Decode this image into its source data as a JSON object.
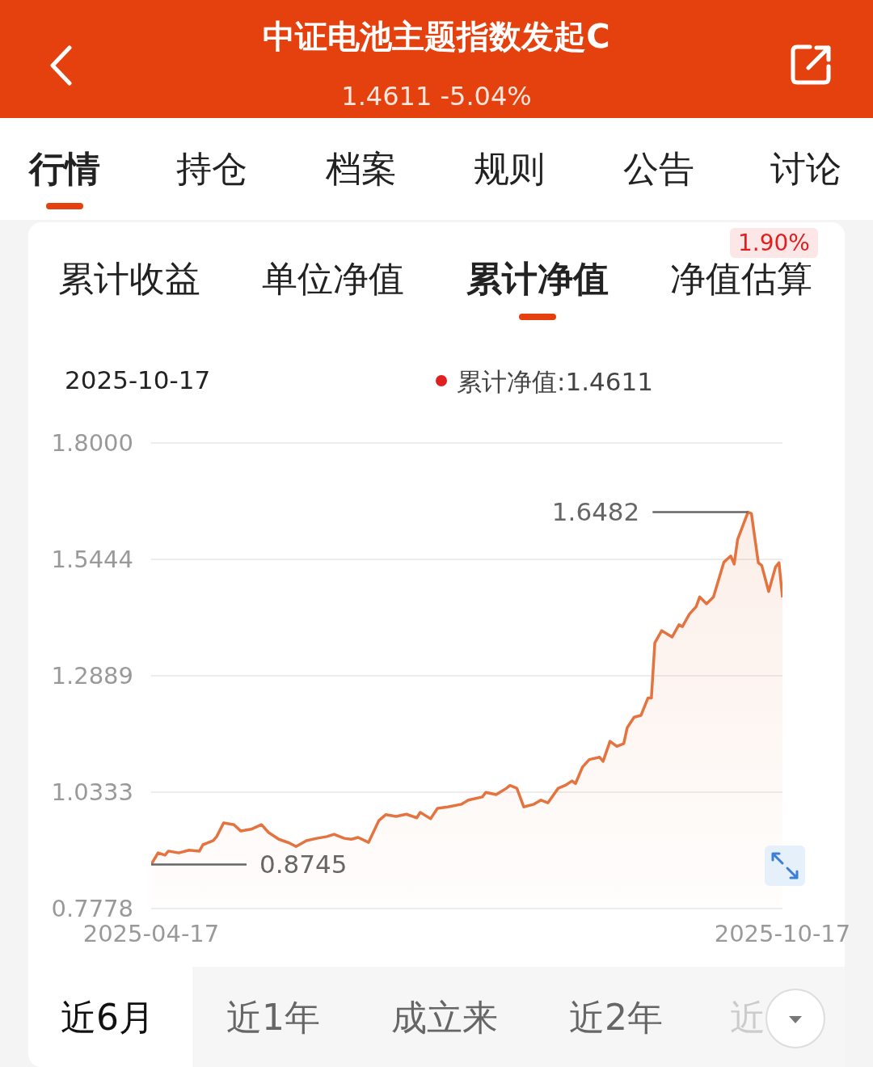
{
  "chart_data": {
    "type": "area",
    "title": "中证电池主题指数发起C",
    "subtitle": "1.4611 -5.04%",
    "x": [
      "2025-04-17",
      "2025-04-19",
      "2025-04-21",
      "2025-04-22",
      "2025-04-25",
      "2025-04-28",
      "2025-05-01",
      "2025-05-02",
      "2025-05-05",
      "2025-05-06",
      "2025-05-08",
      "2025-05-11",
      "2025-05-13",
      "2025-05-16",
      "2025-05-19",
      "2025-05-21",
      "2025-05-24",
      "2025-05-27",
      "2025-05-29",
      "2025-06-01",
      "2025-06-04",
      "2025-06-07",
      "2025-06-09",
      "2025-06-12",
      "2025-06-14",
      "2025-06-16",
      "2025-06-19",
      "2025-06-22",
      "2025-06-24",
      "2025-06-27",
      "2025-06-30",
      "2025-07-03",
      "2025-07-04",
      "2025-07-07",
      "2025-07-09",
      "2025-07-12",
      "2025-07-16",
      "2025-07-18",
      "2025-07-22",
      "2025-07-23",
      "2025-07-26",
      "2025-07-29",
      "2025-07-30",
      "2025-08-01",
      "2025-08-03",
      "2025-08-06",
      "2025-08-08",
      "2025-08-10",
      "2025-08-13",
      "2025-08-15",
      "2025-08-17",
      "2025-08-18",
      "2025-08-20",
      "2025-08-22",
      "2025-08-25",
      "2025-08-26",
      "2025-08-28",
      "2025-08-30",
      "2025-09-01",
      "2025-09-02",
      "2025-09-04",
      "2025-09-06",
      "2025-09-08",
      "2025-09-09",
      "2025-09-10",
      "2025-09-12",
      "2025-09-15",
      "2025-09-17",
      "2025-09-18",
      "2025-09-20",
      "2025-09-22",
      "2025-09-23",
      "2025-09-25",
      "2025-09-27",
      "2025-09-30",
      "2025-10-02",
      "2025-10-03",
      "2025-10-04",
      "2025-10-07",
      "2025-10-08",
      "2025-10-10",
      "2025-10-11",
      "2025-10-13",
      "2025-10-15",
      "2025-10-16",
      "2025-10-17"
    ],
    "values": [
      0.8745,
      0.9,
      0.895,
      0.904,
      0.9,
      0.906,
      0.904,
      0.918,
      0.927,
      0.936,
      0.966,
      0.962,
      0.948,
      0.952,
      0.962,
      0.945,
      0.93,
      0.922,
      0.914,
      0.927,
      0.932,
      0.936,
      0.941,
      0.932,
      0.93,
      0.934,
      0.923,
      0.971,
      0.984,
      0.98,
      0.985,
      0.977,
      0.989,
      0.975,
      0.998,
      1.001,
      1.007,
      1.016,
      1.023,
      1.033,
      1.028,
      1.042,
      1.048,
      1.042,
      1.001,
      1.007,
      1.016,
      1.01,
      1.042,
      1.048,
      1.058,
      1.052,
      1.088,
      1.105,
      1.11,
      1.101,
      1.145,
      1.134,
      1.14,
      1.175,
      1.198,
      1.202,
      1.24,
      1.24,
      1.361,
      1.388,
      1.374,
      1.401,
      1.397,
      1.424,
      1.441,
      1.462,
      1.447,
      1.462,
      1.538,
      1.552,
      1.534,
      1.588,
      1.6482,
      1.645,
      1.537,
      1.531,
      1.474,
      1.528,
      1.537,
      1.4611
    ],
    "color": "#e5733f",
    "xlim": [
      "2025-04-17",
      "2025-10-17"
    ],
    "xticks": [
      "2025-04-17",
      "2025-10-17"
    ],
    "ylim": [
      0.7778,
      1.8
    ],
    "yticks": [
      0.7778,
      1.0333,
      1.2889,
      1.5444,
      {
        "value": 1.8,
        "label": "1.8000"
      }
    ],
    "grid": "y",
    "annotations": [
      "行情",
      "持仓",
      "档案",
      "规则",
      "公告",
      "讨论",
      "累计收益",
      "单位净值",
      "累计净值",
      "净值估算",
      "1.90%",
      "2025-10-17",
      "累计净值:1.4611",
      "1.6482",
      "0.8745",
      "近6月",
      "近1年",
      "成立来",
      "近2年",
      "近"
    ]
  }
}
